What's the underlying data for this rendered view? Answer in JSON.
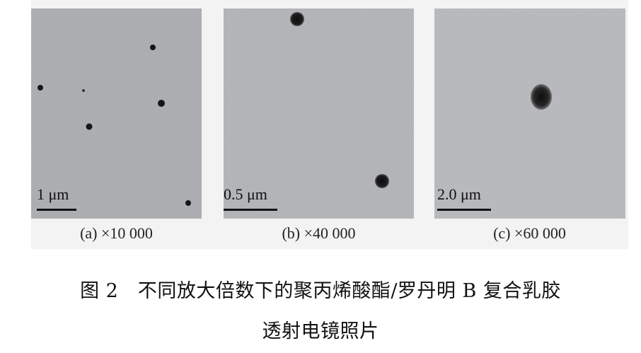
{
  "figure": {
    "panels": [
      {
        "caption": "(a) ×10 000",
        "scale_label": "1 μm"
      },
      {
        "caption": "(b) ×40 000",
        "scale_label": "0.5 μm"
      },
      {
        "caption": "(c) ×60 000",
        "scale_label": "2.0 μm"
      }
    ],
    "title_line1": "图 2　不同放大倍数下的聚丙烯酸酯/罗丹明 B 复合乳胶",
    "title_line2": "透射电镜照片"
  },
  "colors": {
    "panel_background": "#a9aaad",
    "particle": "#161616"
  }
}
